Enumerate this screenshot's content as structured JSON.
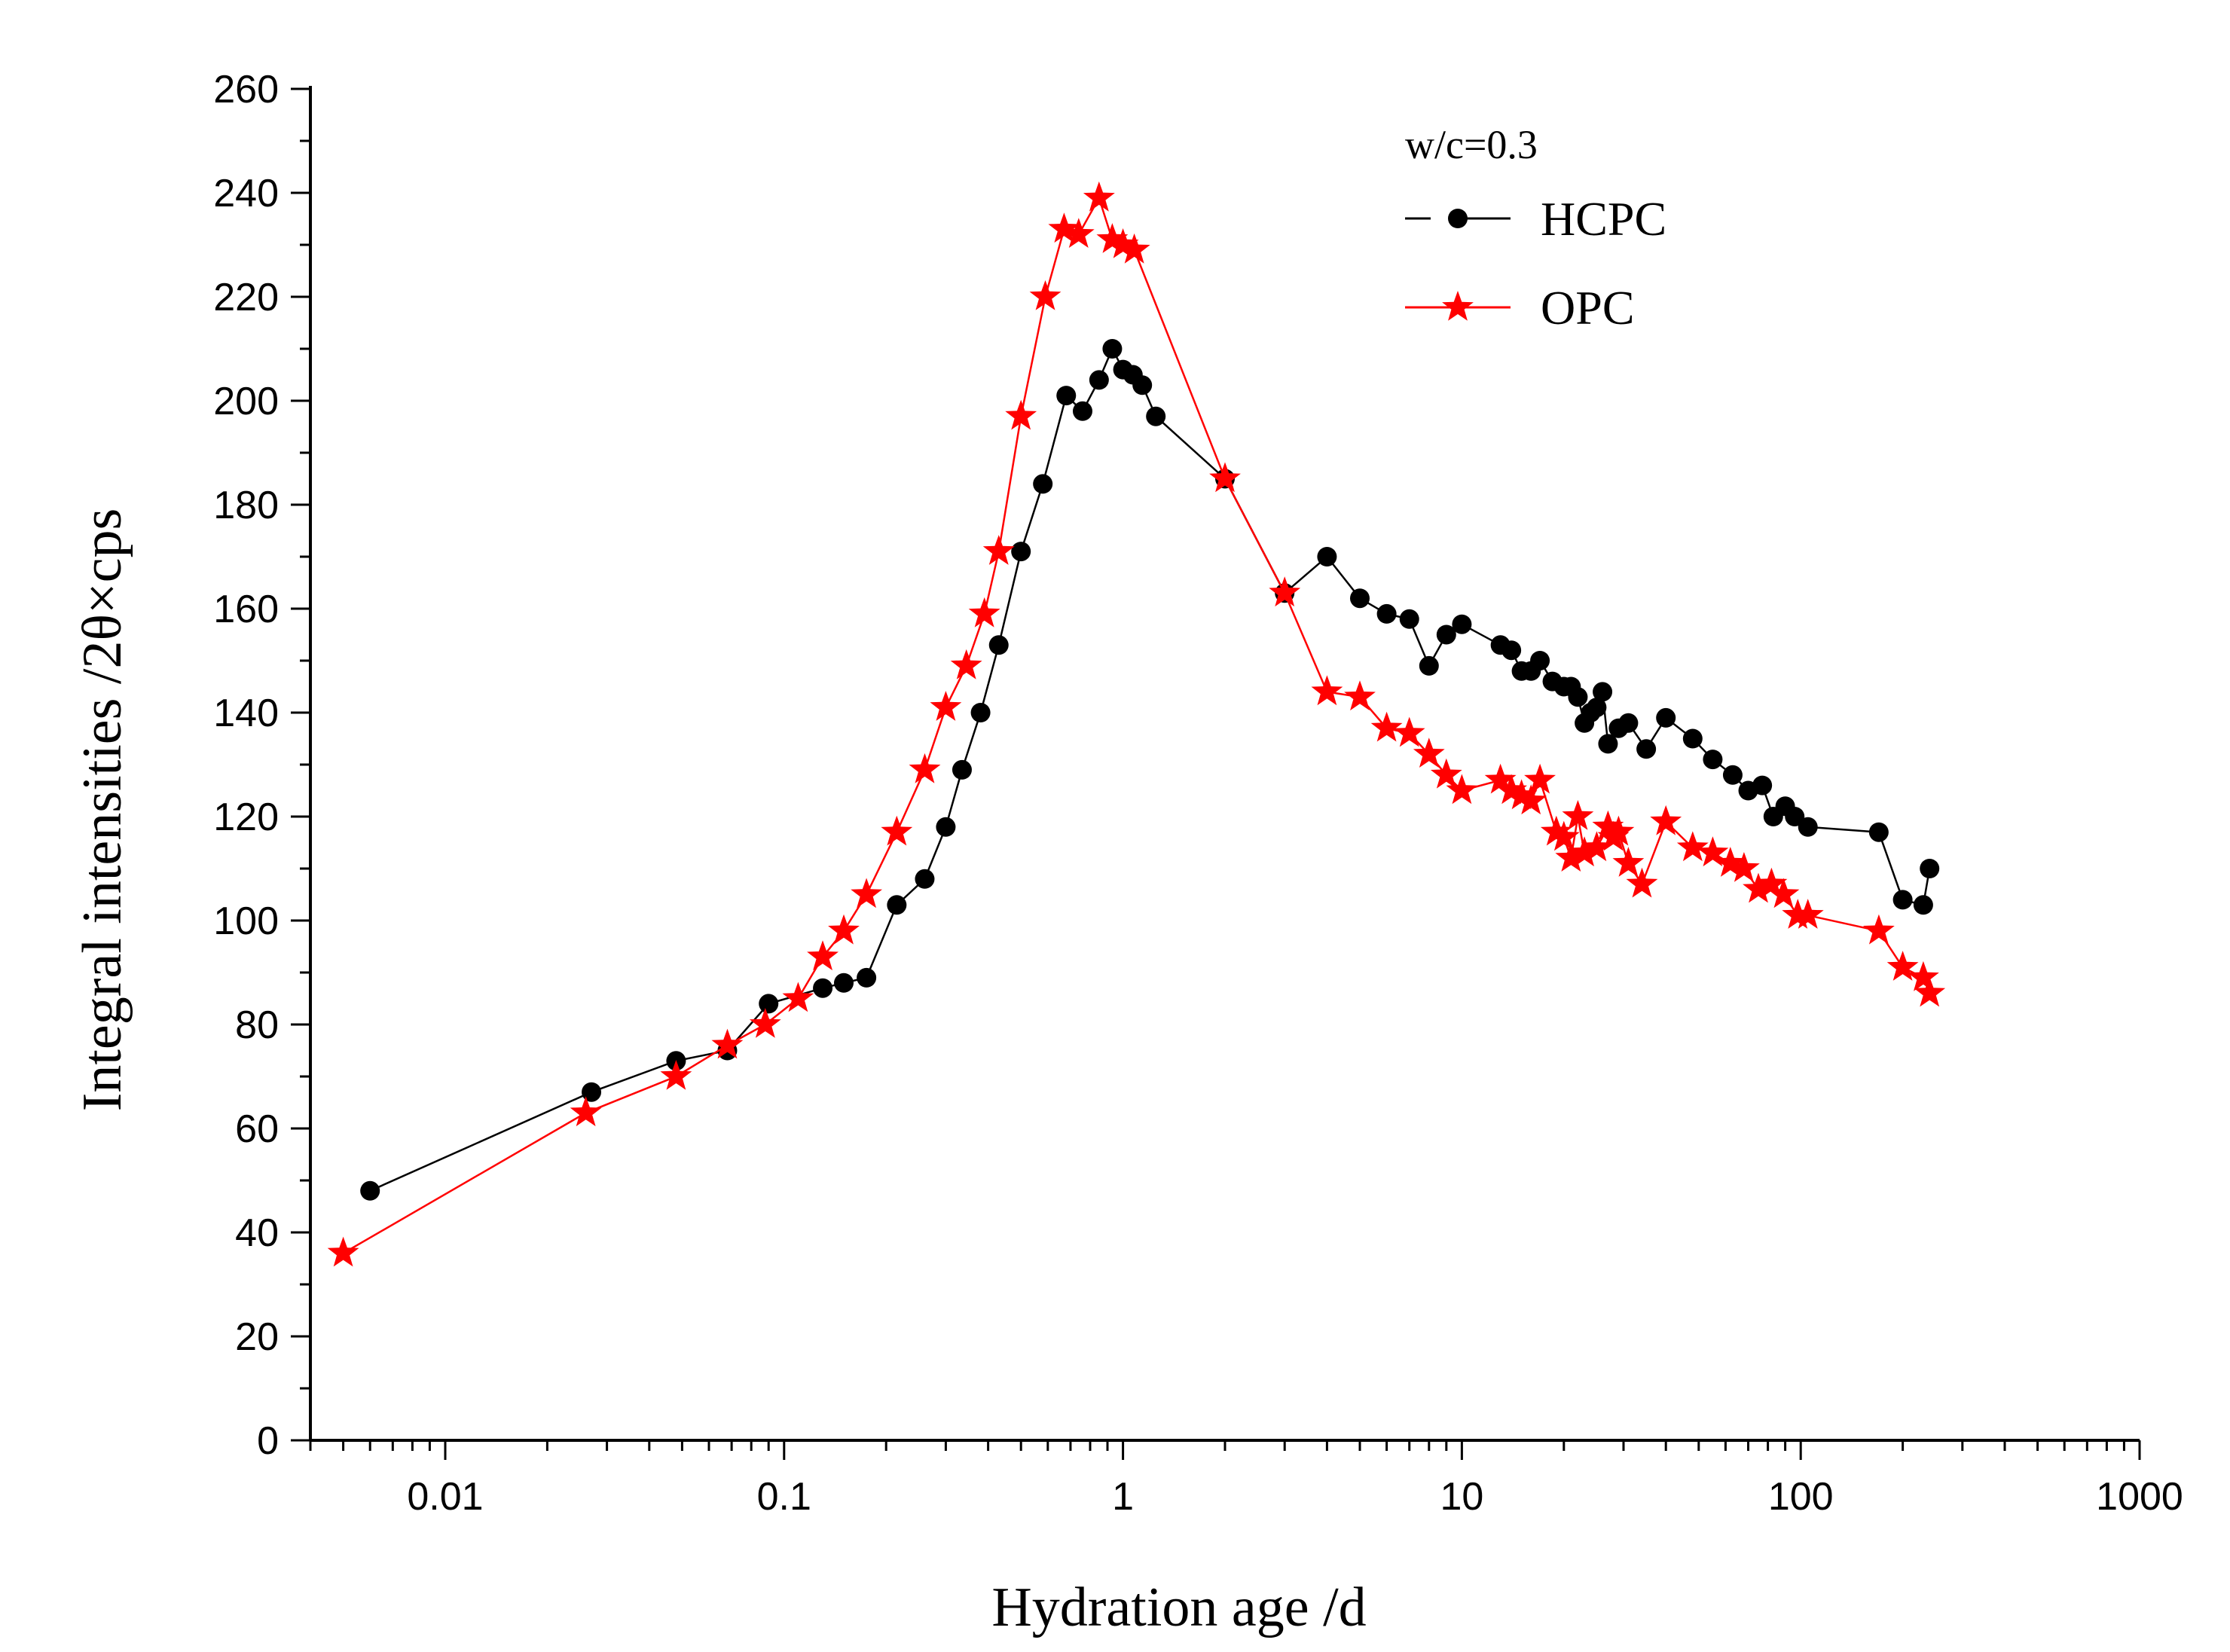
{
  "chart_data": {
    "type": "scatter",
    "xlabel": "Hydration age /d",
    "ylabel": "Integral intensities /2θ×cps",
    "xscale": "log",
    "xlim": [
      0.004,
      1000
    ],
    "ylim": [
      0,
      260
    ],
    "x_ticks": [
      "0.01",
      "0.1",
      "1",
      "10",
      "100",
      "1000"
    ],
    "y_ticks": [
      "0",
      "20",
      "40",
      "60",
      "80",
      "100",
      "120",
      "140",
      "160",
      "180",
      "200",
      "220",
      "240",
      "260"
    ],
    "legend": {
      "title": "w/c=0.3",
      "position": "top-right"
    },
    "grid": false,
    "series": [
      {
        "name": "HCPC",
        "color": "#000000",
        "marker": "circle",
        "x": [
          0.006,
          0.027,
          0.048,
          0.068,
          0.09,
          0.13,
          0.15,
          0.175,
          0.215,
          0.26,
          0.3,
          0.335,
          0.38,
          0.43,
          0.5,
          0.58,
          0.68,
          0.76,
          0.85,
          0.93,
          1.0,
          1.07,
          1.14,
          1.25,
          2.0,
          3.0,
          4.0,
          5.0,
          6.0,
          7.0,
          8.0,
          9.0,
          10,
          13,
          14,
          15,
          16,
          17,
          18.5,
          20,
          21,
          22,
          23,
          24,
          25,
          26,
          27,
          29,
          31,
          35,
          40,
          48,
          55,
          63,
          70,
          77,
          83,
          90,
          96,
          105,
          170,
          200,
          230,
          240
        ],
        "y": [
          48,
          67,
          73,
          75,
          84,
          87,
          88,
          89,
          103,
          108,
          118,
          129,
          140,
          153,
          171,
          184,
          201,
          198,
          204,
          210,
          206,
          205,
          203,
          197,
          185,
          163,
          170,
          162,
          159,
          158,
          149,
          155,
          157,
          153,
          152,
          148,
          148,
          150,
          146,
          145,
          145,
          143,
          138,
          140,
          141,
          144,
          134,
          137,
          138,
          133,
          139,
          135,
          131,
          128,
          125,
          126,
          120,
          122,
          120,
          118,
          117,
          104,
          103,
          110
        ]
      },
      {
        "name": "OPC",
        "color": "#ff0000",
        "marker": "star",
        "x": [
          0.005,
          0.026,
          0.048,
          0.068,
          0.088,
          0.11,
          0.13,
          0.15,
          0.175,
          0.215,
          0.26,
          0.3,
          0.345,
          0.39,
          0.43,
          0.5,
          0.59,
          0.67,
          0.74,
          0.85,
          0.93,
          1.0,
          1.08,
          2.0,
          3.0,
          4.0,
          5.0,
          6.0,
          7.0,
          8.0,
          9.0,
          10,
          13,
          14,
          15,
          16,
          17,
          19,
          20,
          21,
          22,
          23,
          25,
          27,
          28,
          29,
          31,
          34,
          40,
          48,
          55,
          62,
          68,
          75,
          82,
          89,
          98,
          105,
          170,
          200,
          230,
          240
        ],
        "y": [
          36,
          63,
          70,
          76,
          80,
          85,
          93,
          98,
          105,
          117,
          129,
          141,
          149,
          159,
          171,
          197,
          220,
          233,
          232,
          239,
          231,
          230,
          229,
          185,
          163,
          144,
          143,
          137,
          136,
          132,
          128,
          125,
          127,
          125,
          124,
          123,
          127,
          117,
          116,
          112,
          120,
          113,
          114,
          118,
          116,
          117,
          111,
          107,
          119,
          114,
          113,
          111,
          110,
          106,
          107,
          105,
          101,
          101,
          98,
          91,
          89,
          86
        ]
      }
    ]
  }
}
